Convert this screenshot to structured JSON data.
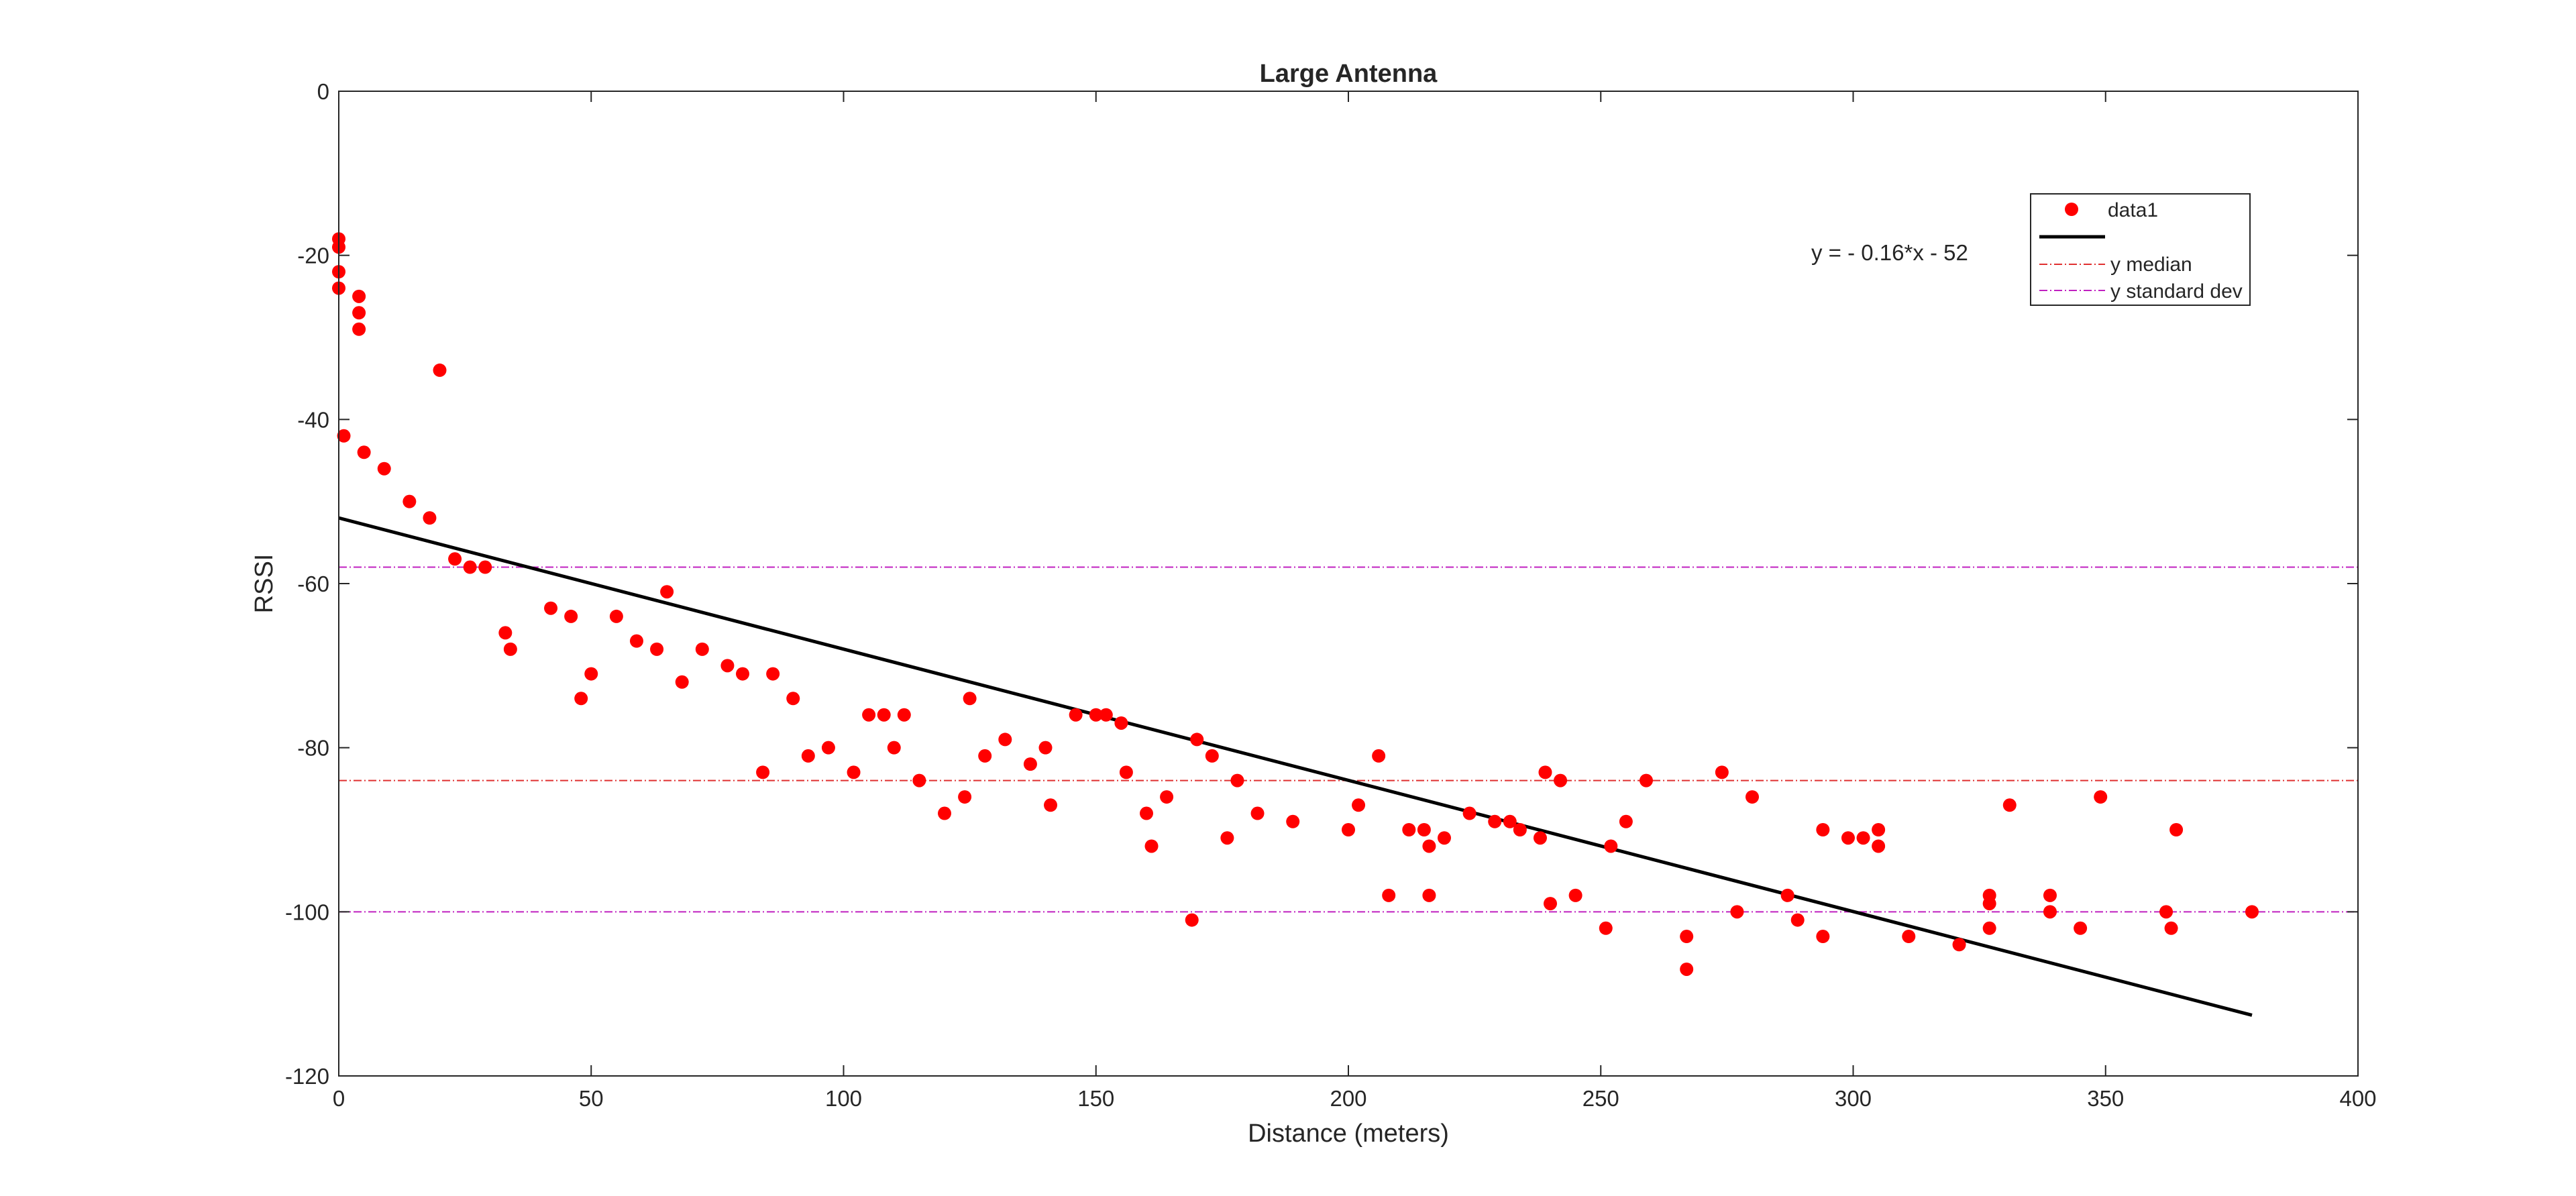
{
  "chart_data": {
    "type": "scatter",
    "title": "Large Antenna",
    "xlabel": "Distance (meters)",
    "ylabel": "RSSI",
    "xlim": [
      0,
      400
    ],
    "ylim": [
      -120,
      0
    ],
    "xticks": [
      "0",
      "50",
      "100",
      "150",
      "200",
      "250",
      "300",
      "350",
      "400"
    ],
    "yticks": [
      "0",
      "-20",
      "-40",
      "-60",
      "-80",
      "-100",
      "-120"
    ],
    "grid": false,
    "legend_position": "top-right",
    "annotation": "y = - 0.16*x - 52",
    "series": [
      {
        "name": "data1",
        "kind": "points",
        "color": "#ff0000",
        "points": [
          [
            0,
            -18
          ],
          [
            0,
            -19
          ],
          [
            0,
            -22
          ],
          [
            0,
            -24
          ],
          [
            1,
            -42
          ],
          [
            4,
            -25
          ],
          [
            4,
            -27
          ],
          [
            4,
            -29
          ],
          [
            5,
            -44
          ],
          [
            9,
            -46
          ],
          [
            14,
            -50
          ],
          [
            18,
            -52
          ],
          [
            20,
            -34
          ],
          [
            23,
            -57
          ],
          [
            26,
            -58
          ],
          [
            29,
            -58
          ],
          [
            33,
            -66
          ],
          [
            34,
            -68
          ],
          [
            42,
            -63
          ],
          [
            46,
            -64
          ],
          [
            48,
            -74
          ],
          [
            50,
            -71
          ],
          [
            55,
            -64
          ],
          [
            59,
            -67
          ],
          [
            63,
            -68
          ],
          [
            65,
            -61
          ],
          [
            68,
            -72
          ],
          [
            72,
            -68
          ],
          [
            77,
            -70
          ],
          [
            80,
            -71
          ],
          [
            84,
            -83
          ],
          [
            86,
            -71
          ],
          [
            90,
            -74
          ],
          [
            93,
            -81
          ],
          [
            97,
            -80
          ],
          [
            102,
            -83
          ],
          [
            105,
            -76
          ],
          [
            108,
            -76
          ],
          [
            110,
            -80
          ],
          [
            112,
            -76
          ],
          [
            115,
            -84
          ],
          [
            120,
            -88
          ],
          [
            124,
            -86
          ],
          [
            125,
            -74
          ],
          [
            128,
            -81
          ],
          [
            132,
            -79
          ],
          [
            137,
            -82
          ],
          [
            140,
            -80
          ],
          [
            141,
            -87
          ],
          [
            146,
            -76
          ],
          [
            150,
            -76
          ],
          [
            152,
            -76
          ],
          [
            155,
            -77
          ],
          [
            156,
            -83
          ],
          [
            160,
            -88
          ],
          [
            161,
            -92
          ],
          [
            164,
            -86
          ],
          [
            169,
            -101
          ],
          [
            170,
            -79
          ],
          [
            173,
            -81
          ],
          [
            176,
            -91
          ],
          [
            178,
            -84
          ],
          [
            182,
            -88
          ],
          [
            189,
            -89
          ],
          [
            200,
            -90
          ],
          [
            202,
            -87
          ],
          [
            206,
            -81
          ],
          [
            208,
            -98
          ],
          [
            212,
            -90
          ],
          [
            215,
            -90
          ],
          [
            216,
            -92
          ],
          [
            216,
            -98
          ],
          [
            219,
            -91
          ],
          [
            224,
            -88
          ],
          [
            229,
            -89
          ],
          [
            232,
            -89
          ],
          [
            234,
            -90
          ],
          [
            238,
            -91
          ],
          [
            239,
            -83
          ],
          [
            240,
            -99
          ],
          [
            242,
            -84
          ],
          [
            245,
            -98
          ],
          [
            251,
            -102
          ],
          [
            252,
            -92
          ],
          [
            255,
            -89
          ],
          [
            259,
            -84
          ],
          [
            267,
            -103
          ],
          [
            267,
            -107
          ],
          [
            274,
            -83
          ],
          [
            277,
            -100
          ],
          [
            280,
            -86
          ],
          [
            287,
            -98
          ],
          [
            289,
            -101
          ],
          [
            294,
            -90
          ],
          [
            294,
            -103
          ],
          [
            299,
            -91
          ],
          [
            302,
            -91
          ],
          [
            305,
            -90
          ],
          [
            305,
            -92
          ],
          [
            311,
            -103
          ],
          [
            321,
            -104
          ],
          [
            327,
            -98
          ],
          [
            327,
            -99
          ],
          [
            327,
            -102
          ],
          [
            331,
            -87
          ],
          [
            339,
            -98
          ],
          [
            339,
            -100
          ],
          [
            345,
            -102
          ],
          [
            349,
            -86
          ],
          [
            362,
            -100
          ],
          [
            363,
            -102
          ],
          [
            364,
            -90
          ],
          [
            379,
            -100
          ]
        ]
      },
      {
        "name": "",
        "kind": "line",
        "color": "#000000",
        "x": [
          0,
          379
        ],
        "y": [
          -52,
          -112.6
        ]
      },
      {
        "name": "y median",
        "kind": "hline",
        "color": "#e03030",
        "y": -84
      },
      {
        "name": "y standard dev",
        "kind": "hlines",
        "color": "#c020c0",
        "y": [
          -58,
          -100
        ]
      }
    ]
  }
}
